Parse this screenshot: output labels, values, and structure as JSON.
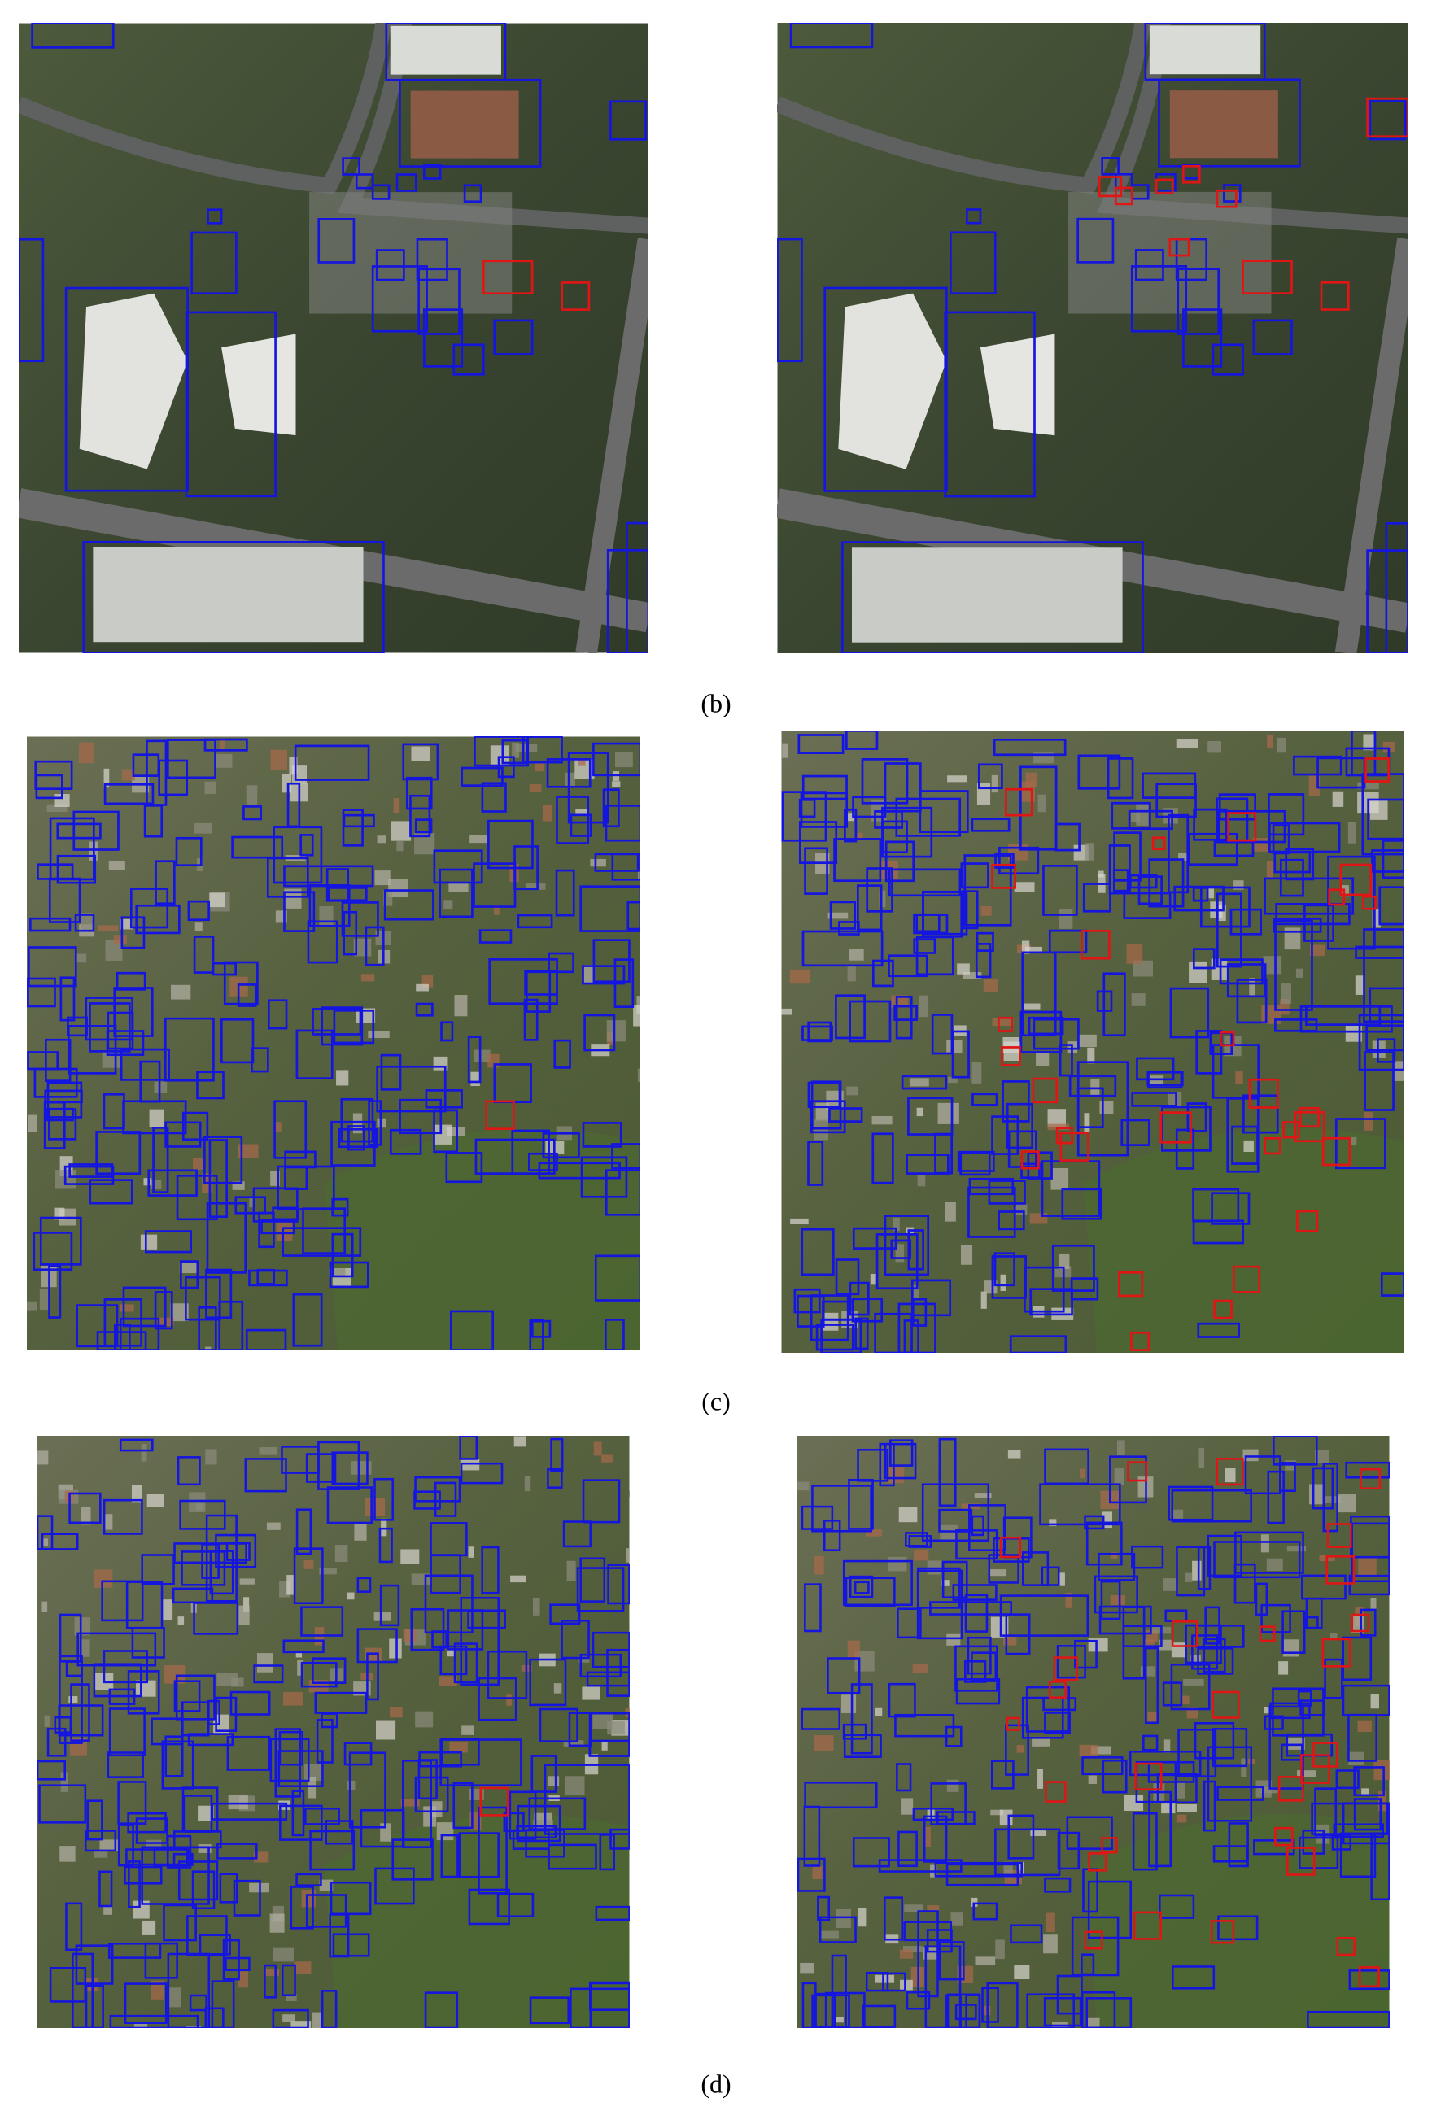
{
  "figure": {
    "panels": [
      {
        "caption": "(b)"
      },
      {
        "caption": "(c)"
      },
      {
        "caption": "(d)"
      }
    ]
  }
}
